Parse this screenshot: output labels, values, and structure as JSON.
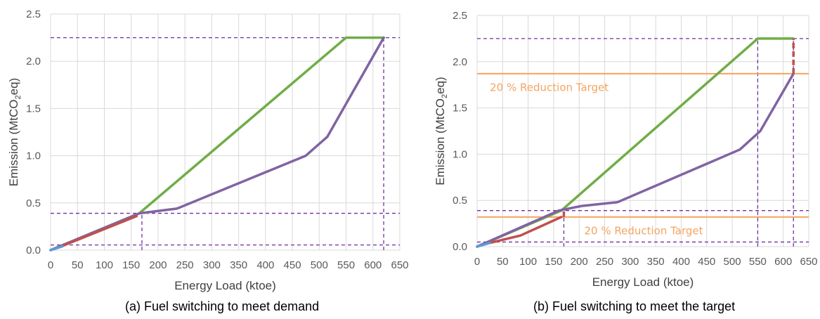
{
  "colors": {
    "green": "#70ad47",
    "purple": "#8064a2",
    "red": "#c0504d",
    "blue": "#5b9bd5",
    "orange": "#f4a460",
    "guide": "#7030a0",
    "grid": "#d9d9d9"
  },
  "chart_data": [
    {
      "type": "line",
      "caption": "(a) Fuel switching to meet demand",
      "xlabel": "Energy Load (ktoe)",
      "ylabel_prefix": "Emission (MtCO",
      "ylabel_sub": "2",
      "ylabel_suffix": "eq)",
      "xlim": [
        0,
        650
      ],
      "ylim": [
        0,
        2.5
      ],
      "xticks": [
        0,
        50,
        100,
        150,
        200,
        250,
        300,
        350,
        400,
        450,
        500,
        550,
        600,
        650
      ],
      "yticks": [
        0.0,
        0.5,
        1.0,
        1.5,
        2.0,
        2.5
      ],
      "ytick_labels": [
        "0.0",
        "0.5",
        "1.0",
        "1.5",
        "2.0",
        "2.5"
      ],
      "grid": true,
      "series": [
        {
          "color_key": "green",
          "x": [
            0,
            165,
            550,
            620
          ],
          "y": [
            0,
            0.39,
            2.25,
            2.25
          ]
        },
        {
          "color_key": "purple",
          "x": [
            0,
            165,
            235,
            475,
            515,
            620
          ],
          "y": [
            0,
            0.39,
            0.44,
            1.0,
            1.2,
            2.25
          ]
        },
        {
          "color_key": "red",
          "x": [
            20,
            160
          ],
          "y": [
            0.04,
            0.36
          ]
        },
        {
          "color_key": "blue",
          "x": [
            0,
            22
          ],
          "y": [
            0,
            0.04
          ]
        }
      ],
      "guides": [
        {
          "orient": "h",
          "value": 2.25,
          "from": 0,
          "to": 650
        },
        {
          "orient": "h",
          "value": 0.39,
          "from": 0,
          "to": 650
        },
        {
          "orient": "h",
          "value": 0.055,
          "from": 0,
          "to": 650
        },
        {
          "orient": "v",
          "value": 170,
          "from": 0,
          "to": 0.39
        },
        {
          "orient": "v",
          "value": 620,
          "from": 0,
          "to": 2.25
        }
      ],
      "targets": [],
      "red_dashes": []
    },
    {
      "type": "line",
      "caption": "(b) Fuel switching to meet the target",
      "xlabel": "Energy Load (ktoe)",
      "ylabel_prefix": "Emission (MtCO",
      "ylabel_sub": "2",
      "ylabel_suffix": "eq)",
      "xlim": [
        0,
        650
      ],
      "ylim": [
        0,
        2.5
      ],
      "xticks": [
        0,
        50,
        100,
        150,
        200,
        250,
        300,
        350,
        400,
        450,
        500,
        550,
        600,
        650
      ],
      "yticks": [
        0.0,
        0.5,
        1.0,
        1.5,
        2.0,
        2.5
      ],
      "ytick_labels": [
        "0.0",
        "0.5",
        "1.0",
        "1.5",
        "2.0",
        "2.5"
      ],
      "grid": true,
      "series": [
        {
          "color_key": "green",
          "x": [
            0,
            165,
            550,
            620
          ],
          "y": [
            0,
            0.39,
            2.25,
            2.25
          ]
        },
        {
          "color_key": "purple",
          "x": [
            0,
            160,
            205,
            275,
            515,
            555,
            620
          ],
          "y": [
            0,
            0.39,
            0.44,
            0.48,
            1.05,
            1.25,
            1.87
          ]
        },
        {
          "color_key": "red",
          "x": [
            25,
            85,
            165
          ],
          "y": [
            0.04,
            0.12,
            0.32
          ]
        },
        {
          "color_key": "blue",
          "x": [
            0,
            25
          ],
          "y": [
            0,
            0.04
          ]
        }
      ],
      "guides": [
        {
          "orient": "h",
          "value": 2.25,
          "from": 0,
          "to": 650
        },
        {
          "orient": "h",
          "value": 0.39,
          "from": 0,
          "to": 650
        },
        {
          "orient": "h",
          "value": 0.05,
          "from": 0,
          "to": 650
        },
        {
          "orient": "v",
          "value": 170,
          "from": 0,
          "to": 0.39
        },
        {
          "orient": "v",
          "value": 550,
          "from": 0,
          "to": 2.25
        },
        {
          "orient": "v",
          "value": 620,
          "from": 0,
          "to": 2.25
        }
      ],
      "targets": [
        {
          "value": 1.87,
          "label": "20 % Reduction Target",
          "label_x": 25,
          "label_y": 1.72
        },
        {
          "value": 0.32,
          "label": "20 % Reduction Target",
          "label_x": 210,
          "label_y": 0.17
        }
      ],
      "red_dashes": [
        {
          "x": 170,
          "from": 0.32,
          "to": 0.39
        },
        {
          "x": 620,
          "from": 1.87,
          "to": 2.25
        }
      ]
    }
  ]
}
